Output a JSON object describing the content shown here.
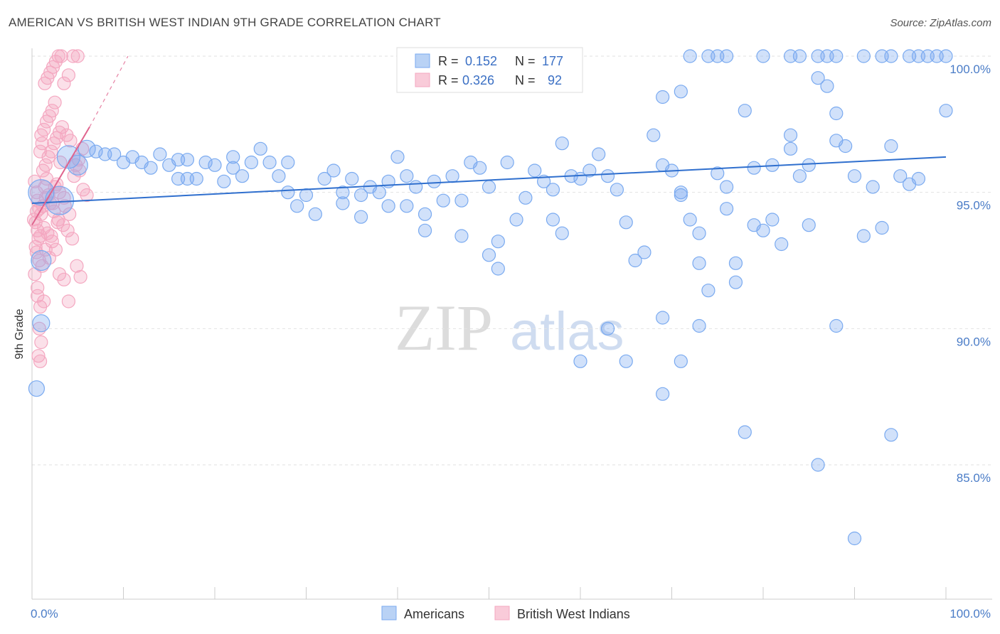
{
  "title": "AMERICAN VS BRITISH WEST INDIAN 9TH GRADE CORRELATION CHART",
  "source": "Source: ZipAtlas.com",
  "watermark": {
    "zip": "ZIP",
    "atlas": "atlas"
  },
  "chart_data": {
    "type": "scatter",
    "xlabel": "",
    "ylabel": "9th Grade",
    "xlim": [
      0,
      100
    ],
    "ylim": [
      80.5,
      101
    ],
    "x_tick_labels": [
      "0.0%",
      "100.0%"
    ],
    "y_ticks": [
      85,
      90,
      95,
      100
    ],
    "y_tick_labels": [
      "85.0%",
      "90.0%",
      "95.0%",
      "100.0%"
    ],
    "grid": true,
    "legend_position": "top-center",
    "stats_legend": [
      {
        "r_label": "R =",
        "r_value": "0.152",
        "n_label": "N =",
        "n_value": "177"
      },
      {
        "r_label": "R =",
        "r_value": "0.326",
        "n_label": "N =",
        "n_value": "92"
      }
    ],
    "series": [
      {
        "name": "Americans",
        "color": "#7aaaf0",
        "line_color": "#2f6fce",
        "trend": {
          "x0": 0,
          "y0": 94.6,
          "x1": 100,
          "y1": 96.3
        },
        "points": [
          [
            1,
            95.0
          ],
          [
            3,
            94.7
          ],
          [
            1,
            92.5
          ],
          [
            1,
            90.2
          ],
          [
            0.5,
            87.8
          ],
          [
            4,
            96.3
          ],
          [
            5,
            96.0
          ],
          [
            6,
            96.6
          ],
          [
            7,
            96.5
          ],
          [
            8,
            96.4
          ],
          [
            9,
            96.4
          ],
          [
            10,
            96.1
          ],
          [
            11,
            96.3
          ],
          [
            12,
            96.1
          ],
          [
            13,
            95.9
          ],
          [
            14,
            96.4
          ],
          [
            15,
            96.0
          ],
          [
            16,
            96.2
          ],
          [
            17,
            96.2
          ],
          [
            16,
            95.5
          ],
          [
            17,
            95.5
          ],
          [
            18,
            95.5
          ],
          [
            19,
            96.1
          ],
          [
            20,
            96.0
          ],
          [
            21,
            95.4
          ],
          [
            22,
            96.3
          ],
          [
            22,
            95.9
          ],
          [
            23,
            95.6
          ],
          [
            24,
            96.1
          ],
          [
            25,
            96.6
          ],
          [
            26,
            96.1
          ],
          [
            27,
            95.6
          ],
          [
            28,
            96.1
          ],
          [
            28,
            95.0
          ],
          [
            29,
            94.5
          ],
          [
            30,
            94.9
          ],
          [
            31,
            94.2
          ],
          [
            32,
            95.5
          ],
          [
            33,
            95.8
          ],
          [
            34,
            95.0
          ],
          [
            34,
            94.6
          ],
          [
            35,
            95.5
          ],
          [
            36,
            94.9
          ],
          [
            36,
            94.1
          ],
          [
            37,
            95.2
          ],
          [
            38,
            95.0
          ],
          [
            39,
            95.4
          ],
          [
            39,
            94.5
          ],
          [
            40,
            96.3
          ],
          [
            41,
            95.6
          ],
          [
            41,
            94.5
          ],
          [
            42,
            95.2
          ],
          [
            43,
            94.2
          ],
          [
            43,
            93.6
          ],
          [
            44,
            95.4
          ],
          [
            45,
            94.7
          ],
          [
            46,
            95.6
          ],
          [
            47,
            94.7
          ],
          [
            47,
            93.4
          ],
          [
            48,
            96.1
          ],
          [
            49,
            95.9
          ],
          [
            50,
            95.2
          ],
          [
            50,
            92.7
          ],
          [
            51,
            93.2
          ],
          [
            51,
            92.2
          ],
          [
            52,
            96.1
          ],
          [
            53,
            94.0
          ],
          [
            54,
            94.8
          ],
          [
            55,
            95.8
          ],
          [
            56,
            95.4
          ],
          [
            57,
            95.1
          ],
          [
            57,
            94.0
          ],
          [
            58,
            96.8
          ],
          [
            58,
            93.5
          ],
          [
            59,
            95.6
          ],
          [
            60,
            95.5
          ],
          [
            61,
            95.8
          ],
          [
            62,
            96.4
          ],
          [
            63,
            95.6
          ],
          [
            64,
            95.1
          ],
          [
            65,
            93.9
          ],
          [
            66,
            92.5
          ],
          [
            67,
            92.8
          ],
          [
            68,
            97.1
          ],
          [
            69,
            96.0
          ],
          [
            70,
            95.8
          ],
          [
            71,
            95.0
          ],
          [
            71,
            94.9
          ],
          [
            72,
            94.0
          ],
          [
            73,
            93.5
          ],
          [
            73,
            92.4
          ],
          [
            74,
            91.4
          ],
          [
            75,
            95.7
          ],
          [
            76,
            95.2
          ],
          [
            76,
            94.4
          ],
          [
            77,
            92.4
          ],
          [
            77,
            91.7
          ],
          [
            78,
            98.0
          ],
          [
            79,
            95.9
          ],
          [
            79,
            93.8
          ],
          [
            80,
            93.6
          ],
          [
            81,
            96.0
          ],
          [
            81,
            94.0
          ],
          [
            82,
            93.1
          ],
          [
            83,
            97.1
          ],
          [
            83,
            96.6
          ],
          [
            84,
            95.6
          ],
          [
            85,
            96.0
          ],
          [
            85,
            93.8
          ],
          [
            86,
            99.2
          ],
          [
            87,
            98.9
          ],
          [
            88,
            97.9
          ],
          [
            88,
            96.9
          ],
          [
            89,
            96.7
          ],
          [
            90,
            95.6
          ],
          [
            91,
            93.4
          ],
          [
            92,
            95.2
          ],
          [
            93,
            93.7
          ],
          [
            94,
            96.7
          ],
          [
            95,
            95.6
          ],
          [
            96,
            95.3
          ],
          [
            97,
            95.5
          ],
          [
            69,
            90.4
          ],
          [
            63,
            90.0
          ],
          [
            60,
            88.8
          ],
          [
            65,
            88.8
          ],
          [
            69,
            87.6
          ],
          [
            71,
            88.8
          ],
          [
            73,
            90.1
          ],
          [
            78,
            86.2
          ],
          [
            86,
            85.0
          ],
          [
            94,
            86.1
          ],
          [
            88,
            90.1
          ],
          [
            90,
            82.3
          ],
          [
            72,
            100
          ],
          [
            74,
            100
          ],
          [
            75,
            100
          ],
          [
            76,
            100
          ],
          [
            80,
            100
          ],
          [
            83,
            100
          ],
          [
            84,
            100
          ],
          [
            86,
            100
          ],
          [
            87,
            100
          ],
          [
            88,
            100
          ],
          [
            91,
            100
          ],
          [
            93,
            100
          ],
          [
            94,
            100
          ],
          [
            96,
            100
          ],
          [
            97,
            100
          ],
          [
            98,
            100
          ],
          [
            99,
            100
          ],
          [
            100,
            100
          ],
          [
            100,
            98.0
          ],
          [
            69,
            98.5
          ],
          [
            71,
            98.7
          ]
        ]
      },
      {
        "name": "British West Indians",
        "color": "#f4a7c0",
        "line_color": "#e0648e",
        "trend": {
          "x0": 0,
          "y0": 93.8,
          "x1": 6.3,
          "y1": 97.4
        },
        "trend_ext": {
          "x0": 6.3,
          "y0": 97.4,
          "x1": 10.5,
          "y1": 100.0
        },
        "points": [
          [
            0.3,
            95.4
          ],
          [
            0.5,
            95.0
          ],
          [
            0.6,
            94.7
          ],
          [
            0.8,
            94.4
          ],
          [
            1.0,
            94.2
          ],
          [
            1.2,
            94.5
          ],
          [
            1.5,
            94.8
          ],
          [
            2.0,
            94.6
          ],
          [
            0.4,
            93.9
          ],
          [
            0.6,
            93.6
          ],
          [
            0.9,
            93.4
          ],
          [
            1.3,
            93.7
          ],
          [
            1.7,
            93.5
          ],
          [
            2.2,
            93.2
          ],
          [
            0.5,
            92.8
          ],
          [
            0.8,
            92.5
          ],
          [
            1.1,
            92.3
          ],
          [
            0.6,
            91.2
          ],
          [
            0.9,
            90.8
          ],
          [
            1.3,
            91.0
          ],
          [
            0.7,
            89.0
          ],
          [
            0.9,
            88.8
          ],
          [
            1.2,
            95.8
          ],
          [
            1.5,
            96.0
          ],
          [
            1.8,
            96.3
          ],
          [
            2.1,
            96.5
          ],
          [
            2.4,
            96.8
          ],
          [
            2.7,
            97.0
          ],
          [
            3.0,
            97.2
          ],
          [
            3.3,
            97.4
          ],
          [
            1.0,
            97.1
          ],
          [
            1.3,
            97.3
          ],
          [
            1.6,
            97.6
          ],
          [
            1.9,
            97.8
          ],
          [
            2.2,
            98.0
          ],
          [
            2.5,
            98.3
          ],
          [
            1.4,
            99.0
          ],
          [
            1.7,
            99.2
          ],
          [
            2.0,
            99.4
          ],
          [
            2.3,
            99.6
          ],
          [
            2.6,
            99.8
          ],
          [
            2.9,
            100.0
          ],
          [
            3.2,
            100.0
          ],
          [
            3.5,
            99.0
          ],
          [
            4.0,
            99.3
          ],
          [
            4.5,
            100.0
          ],
          [
            5.0,
            100.0
          ],
          [
            3.8,
            97.1
          ],
          [
            4.2,
            96.9
          ],
          [
            4.8,
            96.0
          ],
          [
            5.2,
            95.8
          ],
          [
            5.6,
            95.1
          ],
          [
            6.0,
            94.9
          ],
          [
            2.9,
            94.0
          ],
          [
            3.4,
            93.8
          ],
          [
            3.9,
            93.6
          ],
          [
            4.4,
            93.3
          ],
          [
            4.9,
            92.3
          ],
          [
            5.3,
            91.9
          ],
          [
            3.0,
            92.0
          ],
          [
            3.5,
            91.8
          ],
          [
            4.0,
            91.0
          ],
          [
            2.5,
            95.2
          ],
          [
            3.0,
            95.0
          ],
          [
            3.5,
            94.8
          ],
          [
            0.2,
            94.0
          ],
          [
            0.4,
            93.0
          ],
          [
            0.3,
            92.0
          ],
          [
            0.6,
            91.5
          ],
          [
            0.8,
            90.0
          ],
          [
            1.0,
            89.5
          ],
          [
            1.6,
            95.5
          ],
          [
            2.4,
            94.3
          ],
          [
            2.8,
            93.9
          ],
          [
            1.9,
            92.6
          ],
          [
            2.6,
            92.9
          ],
          [
            3.6,
            94.5
          ],
          [
            4.1,
            94.2
          ],
          [
            4.6,
            95.6
          ],
          [
            5.1,
            96.2
          ],
          [
            5.5,
            96.6
          ],
          [
            0.9,
            96.5
          ],
          [
            1.1,
            96.8
          ],
          [
            1.4,
            95.2
          ],
          [
            1.8,
            94.9
          ],
          [
            2.3,
            94.6
          ],
          [
            2.7,
            95.3
          ],
          [
            3.1,
            96.1
          ],
          [
            0.5,
            94.3
          ],
          [
            0.7,
            93.3
          ],
          [
            1.5,
            92.9
          ],
          [
            2.1,
            93.4
          ]
        ]
      }
    ]
  }
}
